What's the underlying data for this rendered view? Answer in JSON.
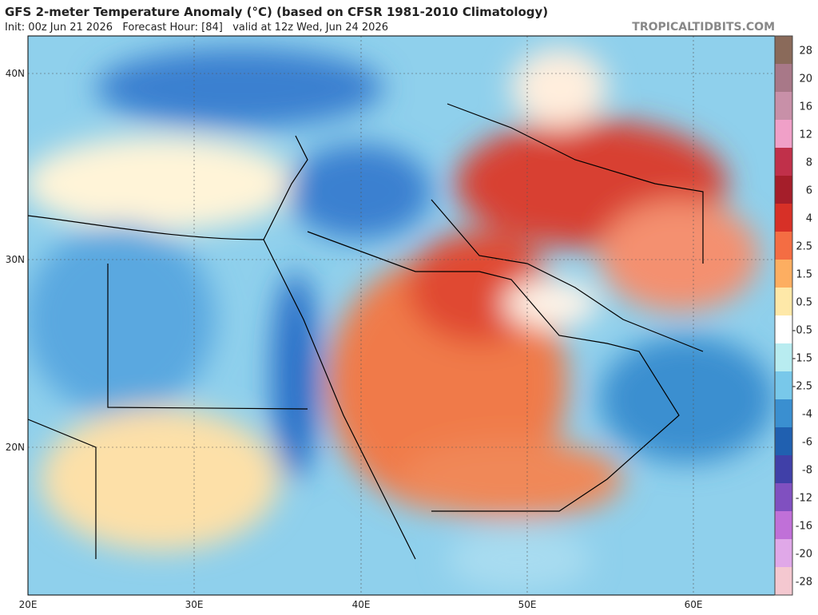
{
  "header": {
    "title": "GFS 2-meter Temperature Anomaly (°C) (based on CFSR 1981-2010 Climatology)",
    "subtitle": "Init: 00z Jun 21 2026   Forecast Hour: [84]   valid at 12z Wed, Jun 24 2026",
    "watermark": "TROPICALTIDBITS.COM"
  },
  "map": {
    "lat_labels": [
      "40N",
      "30N",
      "20N"
    ],
    "lon_labels": [
      "20E",
      "30E",
      "40E",
      "50E",
      "60E"
    ]
  },
  "colorbar": [
    {
      "label": "28",
      "color": "#8a6a5a"
    },
    {
      "label": "20",
      "color": "#a87888"
    },
    {
      "label": "16",
      "color": "#c890a8"
    },
    {
      "label": "12",
      "color": "#f0a0c8"
    },
    {
      "label": "8",
      "color": "#c0304a"
    },
    {
      "label": "6",
      "color": "#a51e2a"
    },
    {
      "label": "4",
      "color": "#d73027"
    },
    {
      "label": "2.5",
      "color": "#f46d43"
    },
    {
      "label": "1.5",
      "color": "#fdae61"
    },
    {
      "label": "0.5",
      "color": "#fee8a8"
    },
    {
      "label": "-0.5",
      "color": "#ffffff"
    },
    {
      "label": "-1.5",
      "color": "#b8ecf0"
    },
    {
      "label": "-2.5",
      "color": "#78c8ea"
    },
    {
      "label": "-4",
      "color": "#3a8fd0"
    },
    {
      "label": "-6",
      "color": "#2060b0"
    },
    {
      "label": "-8",
      "color": "#4040a8"
    },
    {
      "label": "-12",
      "color": "#8050c0"
    },
    {
      "label": "-16",
      "color": "#c070d8"
    },
    {
      "label": "-20",
      "color": "#e0a8e8"
    },
    {
      "label": "-28",
      "color": "#f4c8d0"
    }
  ]
}
